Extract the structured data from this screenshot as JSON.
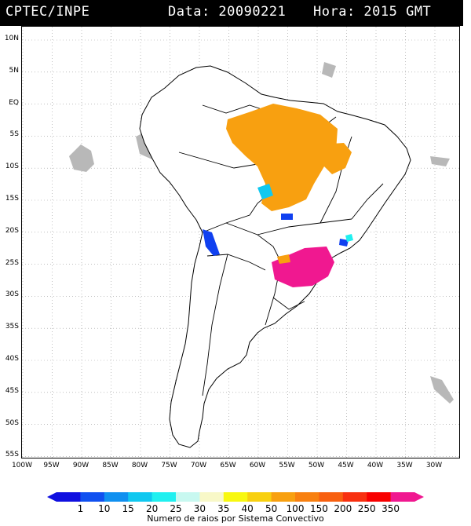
{
  "header": {
    "source": "CPTEC/INPE",
    "date_label": "Data: 20090221",
    "time_label": "Hora: 2015 GMT"
  },
  "map": {
    "lat_labels": [
      "10N",
      "5N",
      "EQ",
      "5S",
      "10S",
      "15S",
      "20S",
      "25S",
      "30S",
      "35S",
      "40S",
      "45S",
      "50S",
      "55S"
    ],
    "lon_labels": [
      "100W",
      "95W",
      "90W",
      "85W",
      "80W",
      "75W",
      "70W",
      "65W",
      "60W",
      "55W",
      "50W",
      "45W",
      "40W",
      "35W",
      "30W"
    ],
    "colors": {
      "land_outline": "#000000",
      "cloud": "#b8b8b8",
      "gridline": "#9a9a9a"
    }
  },
  "legend": {
    "ticks": [
      "1",
      "10",
      "15",
      "20",
      "25",
      "30",
      "35",
      "40",
      "50",
      "100",
      "150",
      "200",
      "250",
      "350"
    ],
    "colors": [
      "#1010e0",
      "#1050f0",
      "#1090f0",
      "#10c8f0",
      "#20f0f0",
      "#c8f8f0",
      "#f8f8c8",
      "#f8f810",
      "#f8d010",
      "#f8a010",
      "#f88010",
      "#f86010",
      "#f83010",
      "#f80000",
      "#f01890"
    ],
    "caption": "Numero de raios por Sistema Convectivo"
  }
}
